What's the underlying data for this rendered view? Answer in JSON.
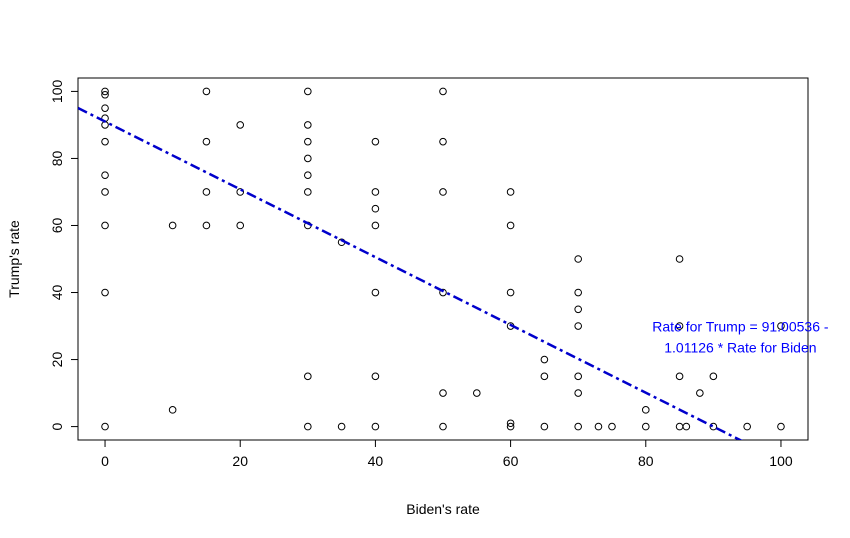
{
  "chart_data": {
    "type": "scatter",
    "xlabel": "Biden's rate",
    "ylabel": "Trump's rate",
    "xlim": [
      -4,
      104
    ],
    "ylim": [
      -4,
      104
    ],
    "x_ticks": [
      0,
      20,
      40,
      60,
      80,
      100
    ],
    "y_ticks": [
      0,
      20,
      40,
      60,
      80,
      100
    ],
    "grid": false,
    "points": [
      [
        0,
        100
      ],
      [
        0,
        99
      ],
      [
        0,
        95
      ],
      [
        0,
        92
      ],
      [
        0,
        90
      ],
      [
        0,
        85
      ],
      [
        0,
        75
      ],
      [
        0,
        70
      ],
      [
        0,
        60
      ],
      [
        0,
        40
      ],
      [
        0,
        0
      ],
      [
        10,
        60
      ],
      [
        10,
        5
      ],
      [
        15,
        100
      ],
      [
        15,
        85
      ],
      [
        15,
        70
      ],
      [
        15,
        60
      ],
      [
        20,
        90
      ],
      [
        20,
        70
      ],
      [
        20,
        60
      ],
      [
        30,
        100
      ],
      [
        30,
        90
      ],
      [
        30,
        85
      ],
      [
        30,
        80
      ],
      [
        30,
        75
      ],
      [
        30,
        70
      ],
      [
        30,
        60
      ],
      [
        30,
        15
      ],
      [
        30,
        0
      ],
      [
        35,
        55
      ],
      [
        35,
        0
      ],
      [
        40,
        85
      ],
      [
        40,
        70
      ],
      [
        40,
        65
      ],
      [
        40,
        60
      ],
      [
        40,
        40
      ],
      [
        40,
        15
      ],
      [
        40,
        0
      ],
      [
        50,
        100
      ],
      [
        50,
        85
      ],
      [
        50,
        70
      ],
      [
        50,
        40
      ],
      [
        50,
        10
      ],
      [
        50,
        0
      ],
      [
        55,
        10
      ],
      [
        60,
        70
      ],
      [
        60,
        60
      ],
      [
        60,
        40
      ],
      [
        60,
        30
      ],
      [
        60,
        1
      ],
      [
        60,
        0
      ],
      [
        65,
        20
      ],
      [
        65,
        15
      ],
      [
        65,
        0
      ],
      [
        70,
        50
      ],
      [
        70,
        40
      ],
      [
        70,
        35
      ],
      [
        70,
        30
      ],
      [
        70,
        15
      ],
      [
        70,
        10
      ],
      [
        70,
        0
      ],
      [
        73,
        0
      ],
      [
        75,
        0
      ],
      [
        80,
        5
      ],
      [
        80,
        0
      ],
      [
        85,
        50
      ],
      [
        85,
        30
      ],
      [
        85,
        15
      ],
      [
        85,
        0
      ],
      [
        86,
        0
      ],
      [
        88,
        10
      ],
      [
        90,
        15
      ],
      [
        90,
        0
      ],
      [
        95,
        0
      ],
      [
        100,
        30
      ],
      [
        100,
        0
      ]
    ],
    "regression": {
      "intercept": 91.00536,
      "slope": -1.01126,
      "color": "#0000cc",
      "style": "dot-dash"
    },
    "annotation": {
      "line1": "Rate for Trump = 91.00536 -",
      "line2": "1.01126 * Rate for Biden",
      "x": 94,
      "y": 31,
      "color": "#0000ff"
    }
  }
}
